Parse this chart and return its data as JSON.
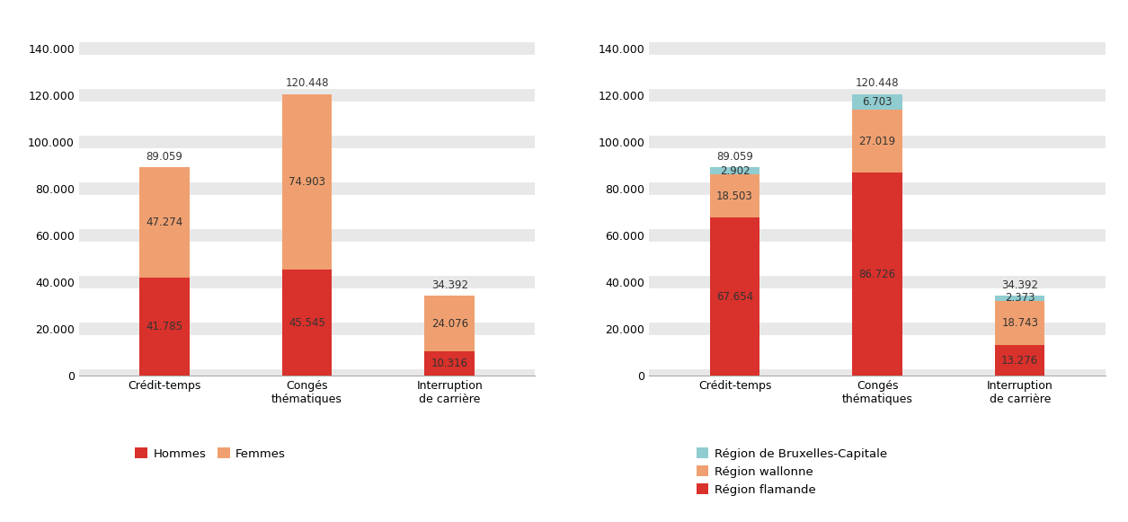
{
  "categories": [
    "Crédit-temps",
    "Congés\nthématiques",
    "Interruption\nde carrière"
  ],
  "chart1": {
    "hommes": [
      41785,
      45545,
      10316
    ],
    "femmes": [
      47274,
      74903,
      24076
    ],
    "totals": [
      89059,
      120448,
      34392
    ],
    "color_hommes": "#d9312b",
    "color_femmes": "#f0a070",
    "legend": [
      "Hommes",
      "Femmes"
    ]
  },
  "chart2": {
    "flamande": [
      67654,
      86726,
      13276
    ],
    "wallonne": [
      18503,
      27019,
      18743
    ],
    "bruxelles": [
      2902,
      6703,
      2373
    ],
    "totals": [
      89059,
      120448,
      34392
    ],
    "color_flamande": "#d9312b",
    "color_wallonne": "#f0a070",
    "color_bruxelles": "#90ccd0",
    "legend": [
      "Région de Bruxelles-Capitale",
      "Région wallonne",
      "Région flamande"
    ]
  },
  "ylim": [
    0,
    145000
  ],
  "yticks": [
    0,
    20000,
    40000,
    60000,
    80000,
    100000,
    120000,
    140000
  ],
  "bg_gray": "#e8e8e8",
  "bg_white": "#ffffff",
  "bar_width": 0.35,
  "label_fontsize": 8.5,
  "tick_fontsize": 9,
  "legend_fontsize": 9.5
}
